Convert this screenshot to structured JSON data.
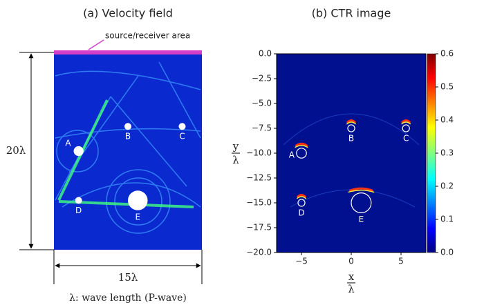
{
  "chart_data": [
    {
      "type": "image",
      "title": "(a) Velocity field",
      "annotations": {
        "source": "source/receiver area",
        "height": "20λ",
        "width": "15λ",
        "note": "λ: wave length (P-wave)"
      }
    },
    {
      "type": "heatmap",
      "title": "(b) CTR image",
      "xlabel": {
        "num": "x",
        "den": "λ"
      },
      "ylabel": {
        "num": "y",
        "den": "λ"
      },
      "xlim": [
        -7.5,
        7.5
      ],
      "ylim": [
        -20,
        0
      ],
      "xticks": [
        {
          "value": -5,
          "label": "−5"
        },
        0,
        5
      ],
      "yticks": [
        {
          "value": 0,
          "label": "0.0"
        },
        {
          "value": -2.5,
          "label": "−2.5"
        },
        {
          "value": -5,
          "label": "−5.0"
        },
        {
          "value": -7.5,
          "label": "−7.5"
        },
        {
          "value": -10,
          "label": "−10.0"
        },
        {
          "value": -12.5,
          "label": "−12.5"
        },
        {
          "value": -15,
          "label": "−15.0"
        },
        {
          "value": -17.5,
          "label": "−17.5"
        },
        {
          "value": -20,
          "label": "−20.0"
        }
      ],
      "colorbar": {
        "colormap": "jet",
        "lim": [
          0,
          0.6
        ],
        "ticks": [
          {
            "value": 0,
            "label": "0.0"
          },
          0.1,
          0.2,
          0.3,
          0.4,
          0.5,
          0.6
        ]
      },
      "points": [
        {
          "label": "A",
          "x": -5,
          "y": -10,
          "radius": 0.5
        },
        {
          "label": "B",
          "x": 0,
          "y": -7.5,
          "radius": 0.35
        },
        {
          "label": "C",
          "x": 5.5,
          "y": -7.5,
          "radius": 0.35
        },
        {
          "label": "D",
          "x": -5,
          "y": -15,
          "radius": 0.35
        },
        {
          "label": "E",
          "x": 1,
          "y": -15,
          "radius": 1
        }
      ]
    }
  ]
}
